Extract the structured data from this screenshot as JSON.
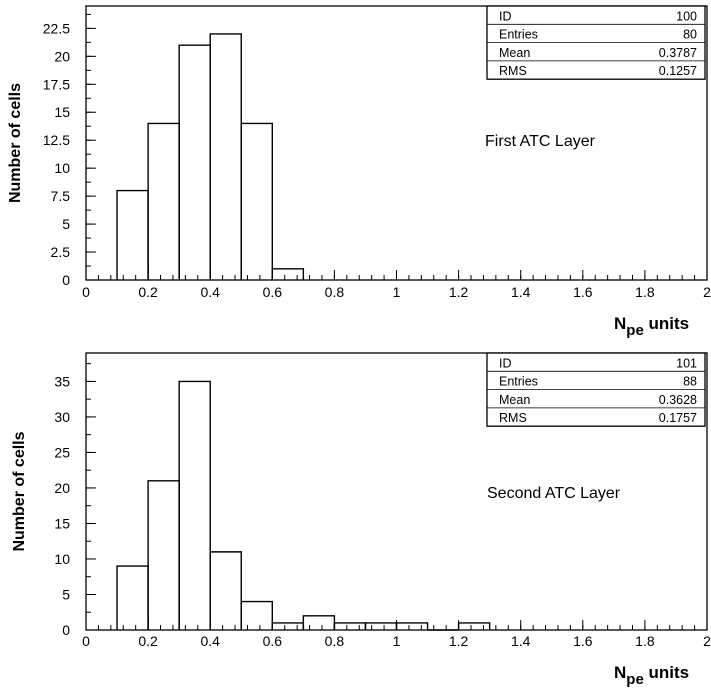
{
  "chart_data": [
    {
      "type": "bar",
      "histogram": true,
      "annotation": "First ATC Layer",
      "ylabel": "Number of cells",
      "xlabel": "N",
      "xlabel_sub": "pe",
      "xlabel_suffix": " units",
      "xlim": [
        0,
        2
      ],
      "ylim": [
        0,
        24.5
      ],
      "x_ticks": [
        0,
        0.2,
        0.4,
        0.6,
        0.8,
        1,
        1.2,
        1.4,
        1.6,
        1.8,
        2
      ],
      "x_tick_labels": [
        "0",
        "0.2",
        "0.4",
        "0.6",
        "0.8",
        "1",
        "1.2",
        "1.4",
        "1.6",
        "1.8",
        "2"
      ],
      "y_ticks": [
        0,
        2.5,
        5,
        7.5,
        10,
        12.5,
        15,
        17.5,
        20,
        22.5
      ],
      "y_tick_labels": [
        "0",
        "2.5",
        "5",
        "7.5",
        "10",
        "12.5",
        "15",
        "17.5",
        "20",
        "22.5"
      ],
      "bin_width": 0.1,
      "bins_low_edge": [
        0.1,
        0.2,
        0.3,
        0.4,
        0.5,
        0.6
      ],
      "values": [
        8,
        14,
        21,
        22,
        14,
        1
      ],
      "stats": [
        {
          "label": "ID",
          "value": "100"
        },
        {
          "label": "Entries",
          "value": "80"
        },
        {
          "label": "Mean",
          "value": "0.3787"
        },
        {
          "label": "RMS",
          "value": "0.1257"
        }
      ]
    },
    {
      "type": "bar",
      "histogram": true,
      "annotation": "Second ATC Layer",
      "ylabel": "Number of cells",
      "xlabel": "N",
      "xlabel_sub": "pe",
      "xlabel_suffix": " units",
      "xlim": [
        0,
        2
      ],
      "ylim": [
        0,
        39
      ],
      "x_ticks": [
        0,
        0.2,
        0.4,
        0.6,
        0.8,
        1,
        1.2,
        1.4,
        1.6,
        1.8,
        2
      ],
      "x_tick_labels": [
        "0",
        "0.2",
        "0.4",
        "0.6",
        "0.8",
        "1",
        "1.2",
        "1.4",
        "1.6",
        "1.8",
        "2"
      ],
      "y_ticks": [
        0,
        5,
        10,
        15,
        20,
        25,
        30,
        35
      ],
      "y_tick_labels": [
        "0",
        "5",
        "10",
        "15",
        "20",
        "25",
        "30",
        "35"
      ],
      "bin_width": 0.1,
      "bins_low_edge": [
        0.1,
        0.2,
        0.3,
        0.4,
        0.5,
        0.6,
        0.7,
        0.8,
        0.9,
        1.0,
        1.1,
        1.2
      ],
      "values": [
        9,
        21,
        35,
        11,
        4,
        1,
        2,
        1,
        1,
        1,
        0,
        1
      ],
      "stats": [
        {
          "label": "ID",
          "value": "101"
        },
        {
          "label": "Entries",
          "value": "88"
        },
        {
          "label": "Mean",
          "value": "0.3628"
        },
        {
          "label": "RMS",
          "value": "0.1757"
        }
      ]
    }
  ]
}
